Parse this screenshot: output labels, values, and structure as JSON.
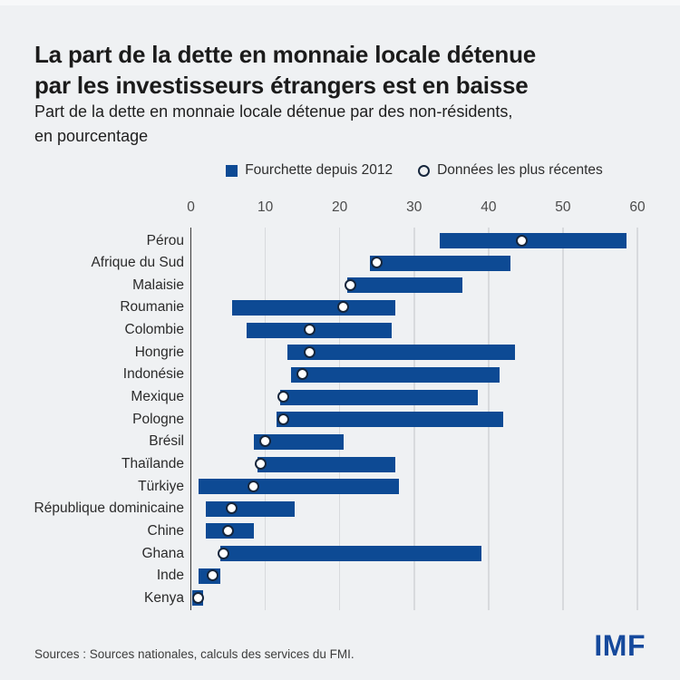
{
  "header": {
    "title_line1": "La part de la dette en monnaie locale détenue",
    "title_line2": "par les investisseurs étrangers est en baisse",
    "subtitle_line1": "Part de la dette en monnaie locale détenue par des non-résidents,",
    "subtitle_line2": "en pourcentage"
  },
  "legend": {
    "range_label": "Fourchette depuis 2012",
    "recent_label": "Données les plus récentes"
  },
  "footer": {
    "sources": "Sources : Sources nationales, calculs des services du FMI.",
    "logo": "IMF"
  },
  "colors": {
    "background": "#eff1f3",
    "bar_blue": "#0d4a94",
    "marker_border": "#16263c",
    "logo_blue": "#15499c",
    "gridline": "#d8dadd",
    "axis_line": "#3a3a3a"
  },
  "chart_data": {
    "type": "bar",
    "subtype": "horizontal_range_bar_with_point",
    "title": "La part de la dette en monnaie locale détenue par les investisseurs étrangers est en baisse",
    "subtitle": "Part de la dette en monnaie locale détenue par des non-résidents, en pourcentage",
    "xlabel": "",
    "ylabel": "",
    "xlim": [
      0,
      62
    ],
    "x_ticks": [
      0,
      10,
      20,
      30,
      40,
      50,
      60
    ],
    "grid": true,
    "legend_position": "top-center",
    "series": [
      {
        "name": "Fourchette depuis 2012",
        "type": "range"
      },
      {
        "name": "Données les plus récentes",
        "type": "point"
      }
    ],
    "rows": [
      {
        "country": "Pérou",
        "range": [
          33.5,
          58.5
        ],
        "recent": 44.5
      },
      {
        "country": "Afrique du Sud",
        "range": [
          24,
          43
        ],
        "recent": 25
      },
      {
        "country": "Malaisie",
        "range": [
          21,
          36.5
        ],
        "recent": 21.5
      },
      {
        "country": "Roumanie",
        "range": [
          5.5,
          27.5
        ],
        "recent": 20.5
      },
      {
        "country": "Colombie",
        "range": [
          7.5,
          27
        ],
        "recent": 16
      },
      {
        "country": "Hongrie",
        "range": [
          13,
          43.5
        ],
        "recent": 16
      },
      {
        "country": "Indonésie",
        "range": [
          13.5,
          41.5
        ],
        "recent": 15
      },
      {
        "country": "Mexique",
        "range": [
          12,
          38.5
        ],
        "recent": 12.5
      },
      {
        "country": "Pologne",
        "range": [
          11.5,
          42
        ],
        "recent": 12.5
      },
      {
        "country": "Brésil",
        "range": [
          8.5,
          20.5
        ],
        "recent": 10
      },
      {
        "country": "Thaïlande",
        "range": [
          9,
          27.5
        ],
        "recent": 9.5
      },
      {
        "country": "Türkiye",
        "range": [
          1,
          28
        ],
        "recent": 8.5
      },
      {
        "country": "République dominicaine",
        "range": [
          2,
          14
        ],
        "recent": 5.5
      },
      {
        "country": "Chine",
        "range": [
          2,
          8.5
        ],
        "recent": 5
      },
      {
        "country": "Ghana",
        "range": [
          4,
          39
        ],
        "recent": 4.5
      },
      {
        "country": "Inde",
        "range": [
          1,
          4
        ],
        "recent": 3
      },
      {
        "country": "Kenya",
        "range": [
          0.2,
          1.6
        ],
        "recent": 1
      }
    ]
  }
}
